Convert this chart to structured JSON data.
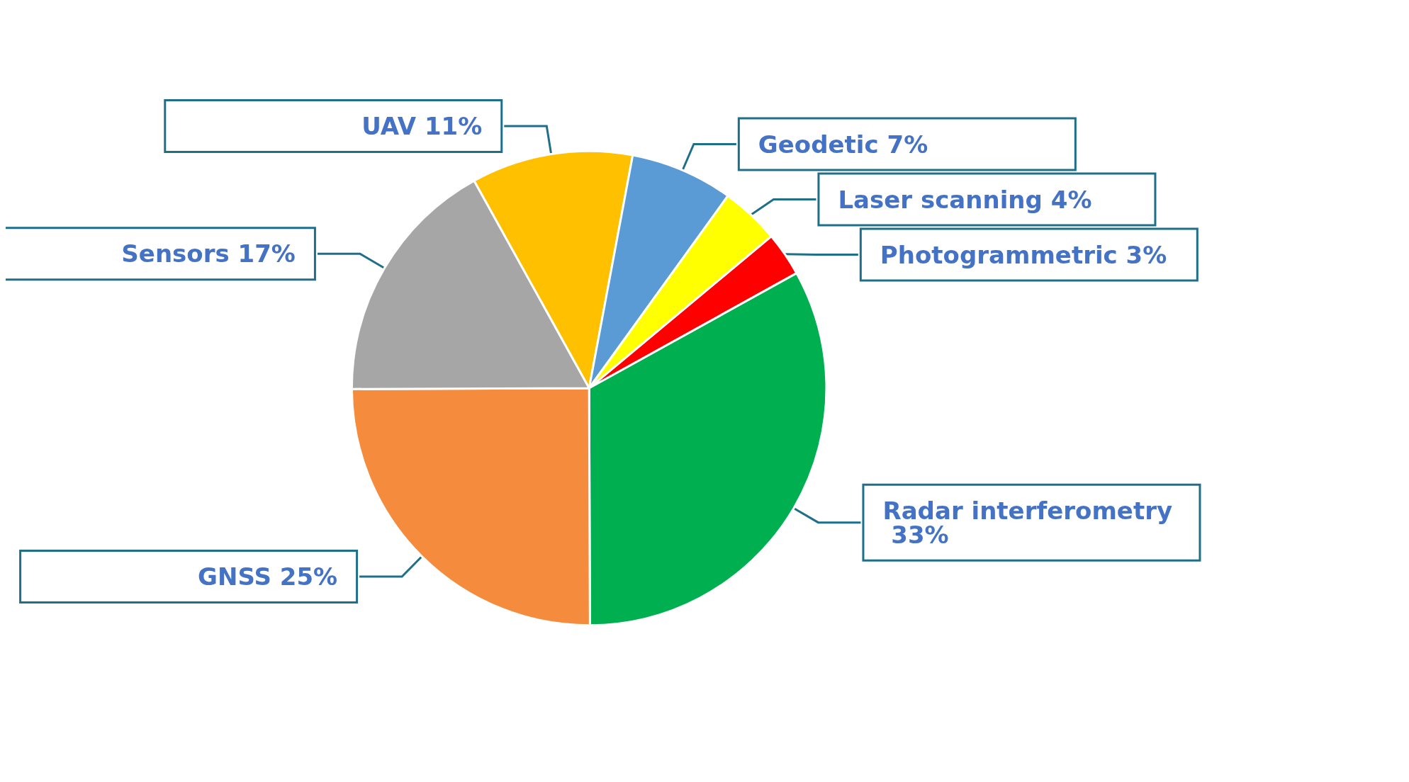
{
  "chart_data": {
    "type": "pie",
    "categories": [
      "UAV",
      "Geodetic",
      "Laser scanning",
      "Photogrammetric",
      "Radar interferometry",
      "GNSS",
      "Sensors"
    ],
    "values": [
      11,
      7,
      4,
      3,
      33,
      25,
      17
    ],
    "value_labels": [
      "11%",
      "7%",
      "4%",
      "3%",
      "33%",
      "25%",
      "17%"
    ],
    "colors": [
      "#ffc000",
      "#5b9bd5",
      "#ffff00",
      "#ff0000",
      "#00b050",
      "#f58b3c",
      "#a6a6a6"
    ],
    "legend": false
  }
}
